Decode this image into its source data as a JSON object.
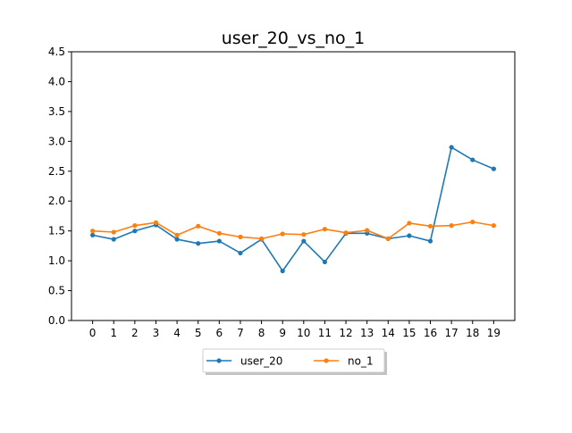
{
  "chart_data": {
    "type": "line",
    "title": "user_20_vs_no_1",
    "xlabel": "",
    "ylabel": "",
    "x": [
      0,
      1,
      2,
      3,
      4,
      5,
      6,
      7,
      8,
      9,
      10,
      11,
      12,
      13,
      14,
      15,
      16,
      17,
      18,
      19
    ],
    "xlim": [
      -1,
      20
    ],
    "ylim": [
      0,
      4.5
    ],
    "yticks": [
      "0.0",
      "0.5",
      "1.0",
      "1.5",
      "2.0",
      "2.5",
      "3.0",
      "3.5",
      "4.0",
      "4.5"
    ],
    "grid": false,
    "legend_position": "bottom-center",
    "series": [
      {
        "name": "user_20",
        "color": "#1f77b4",
        "values": [
          1.43,
          1.36,
          1.5,
          1.6,
          1.36,
          1.29,
          1.33,
          1.13,
          1.36,
          0.83,
          1.33,
          0.98,
          1.46,
          1.46,
          1.37,
          1.42,
          1.33,
          2.9,
          2.69,
          2.54
        ]
      },
      {
        "name": "no_1",
        "color": "#ff7f0e",
        "values": [
          1.5,
          1.48,
          1.59,
          1.64,
          1.43,
          1.58,
          1.46,
          1.4,
          1.37,
          1.45,
          1.44,
          1.53,
          1.47,
          1.51,
          1.37,
          1.63,
          1.58,
          1.59,
          1.65,
          1.59
        ]
      }
    ]
  }
}
